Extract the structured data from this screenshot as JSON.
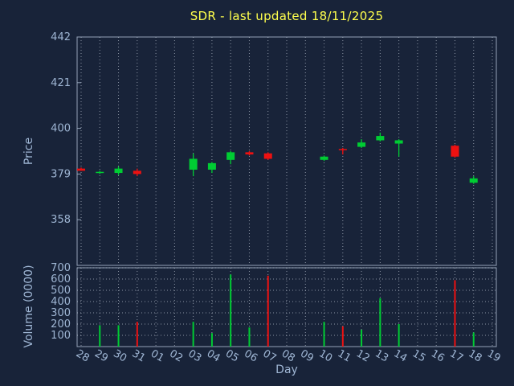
{
  "title": "SDR - last updated 18/11/2025",
  "xlabel": "Day",
  "price_axis_label": "Price",
  "volume_axis_label": "Volume (0000)",
  "colors": {
    "background": "#182339",
    "text": "#9fb6d4",
    "title": "#ffff4d",
    "up": "#00cc33",
    "down": "#ee1111",
    "grid": "#c8d0dc",
    "border": "#93a2b8"
  },
  "chart_data": [
    {
      "type": "candlestick",
      "title": "SDR - last updated 18/11/2025",
      "ylabel": "Price",
      "xlabel": "Day",
      "ylim": [
        337,
        442
      ],
      "yticks": [
        358,
        379,
        400,
        421,
        442
      ],
      "grid": "vertical-dotted",
      "categories": [
        "28",
        "29",
        "30",
        "31",
        "01",
        "02",
        "03",
        "04",
        "05",
        "06",
        "07",
        "08",
        "09",
        "10",
        "11",
        "12",
        "13",
        "14",
        "15",
        "16",
        "17",
        "18",
        "19"
      ],
      "series": [
        {
          "day": "28",
          "open": 381.5,
          "high": 382.0,
          "low": 380.5,
          "close": 380.5
        },
        {
          "day": "29",
          "open": 379.5,
          "high": 380.5,
          "low": 379.0,
          "close": 380.0
        },
        {
          "day": "30",
          "open": 379.5,
          "high": 382.5,
          "low": 378.5,
          "close": 381.5
        },
        {
          "day": "31",
          "open": 380.5,
          "high": 381.5,
          "low": 378.0,
          "close": 379.0
        },
        {
          "day": "03",
          "open": 381.0,
          "high": 388.5,
          "low": 378.0,
          "close": 386.0
        },
        {
          "day": "04",
          "open": 381.0,
          "high": 384.5,
          "low": 379.5,
          "close": 384.0
        },
        {
          "day": "05",
          "open": 385.5,
          "high": 389.5,
          "low": 383.5,
          "close": 389.0
        },
        {
          "day": "06",
          "open": 389.0,
          "high": 389.5,
          "low": 387.5,
          "close": 388.0
        },
        {
          "day": "07",
          "open": 388.5,
          "high": 389.0,
          "low": 385.5,
          "close": 386.0
        },
        {
          "day": "10",
          "open": 385.5,
          "high": 387.5,
          "low": 385.0,
          "close": 387.0
        },
        {
          "day": "11",
          "open": 390.5,
          "high": 391.0,
          "low": 388.0,
          "close": 390.0
        },
        {
          "day": "12",
          "open": 391.5,
          "high": 395.0,
          "low": 391.0,
          "close": 393.5
        },
        {
          "day": "13",
          "open": 394.5,
          "high": 398.0,
          "low": 394.0,
          "close": 396.5
        },
        {
          "day": "14",
          "open": 393.0,
          "high": 395.0,
          "low": 387.0,
          "close": 394.5
        },
        {
          "day": "17",
          "open": 392.0,
          "high": 392.5,
          "low": 386.5,
          "close": 387.0
        },
        {
          "day": "18",
          "open": 375.0,
          "high": 378.0,
          "low": 374.5,
          "close": 377.0
        }
      ]
    },
    {
      "type": "bar",
      "ylabel": "Volume (0000)",
      "ylim": [
        0,
        700
      ],
      "yticks": [
        100,
        200,
        300,
        400,
        500,
        600,
        700
      ],
      "grid": "both-dotted",
      "categories": [
        "28",
        "29",
        "30",
        "31",
        "01",
        "02",
        "03",
        "04",
        "05",
        "06",
        "07",
        "08",
        "09",
        "10",
        "11",
        "12",
        "13",
        "14",
        "15",
        "16",
        "17",
        "18",
        "19"
      ],
      "values": [
        {
          "day": "29",
          "value": 190,
          "direction": "up"
        },
        {
          "day": "30",
          "value": 190,
          "direction": "up"
        },
        {
          "day": "31",
          "value": 220,
          "direction": "down"
        },
        {
          "day": "03",
          "value": 220,
          "direction": "up"
        },
        {
          "day": "04",
          "value": 120,
          "direction": "up"
        },
        {
          "day": "05",
          "value": 640,
          "direction": "up"
        },
        {
          "day": "06",
          "value": 170,
          "direction": "up"
        },
        {
          "day": "07",
          "value": 630,
          "direction": "down"
        },
        {
          "day": "10",
          "value": 220,
          "direction": "up"
        },
        {
          "day": "11",
          "value": 180,
          "direction": "down"
        },
        {
          "day": "12",
          "value": 150,
          "direction": "up"
        },
        {
          "day": "13",
          "value": 430,
          "direction": "up"
        },
        {
          "day": "14",
          "value": 200,
          "direction": "up"
        },
        {
          "day": "17",
          "value": 590,
          "direction": "down"
        },
        {
          "day": "18",
          "value": 125,
          "direction": "up"
        }
      ]
    }
  ]
}
